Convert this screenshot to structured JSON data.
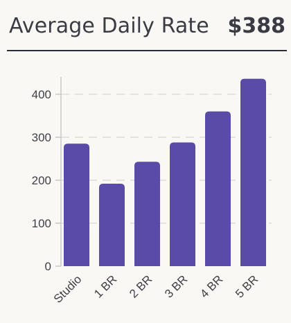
{
  "header": {
    "title": "Average Daily Rate",
    "value": "$388"
  },
  "colors": {
    "bar": "#5b4ba8",
    "grid": "#dcdcdc",
    "axis": "#c8c8c8",
    "text": "#3b3b45"
  },
  "chart_data": {
    "type": "bar",
    "categories": [
      "Studio",
      "1 BR",
      "2 BR",
      "3 BR",
      "4 BR",
      "5 BR"
    ],
    "values": [
      285,
      192,
      243,
      288,
      360,
      436
    ],
    "ylim": [
      0,
      450
    ],
    "yticks": [
      0,
      100,
      200,
      300,
      400
    ],
    "grid": true,
    "gridlines": [
      100,
      200,
      300,
      400
    ],
    "gridstyle": "dashed"
  }
}
